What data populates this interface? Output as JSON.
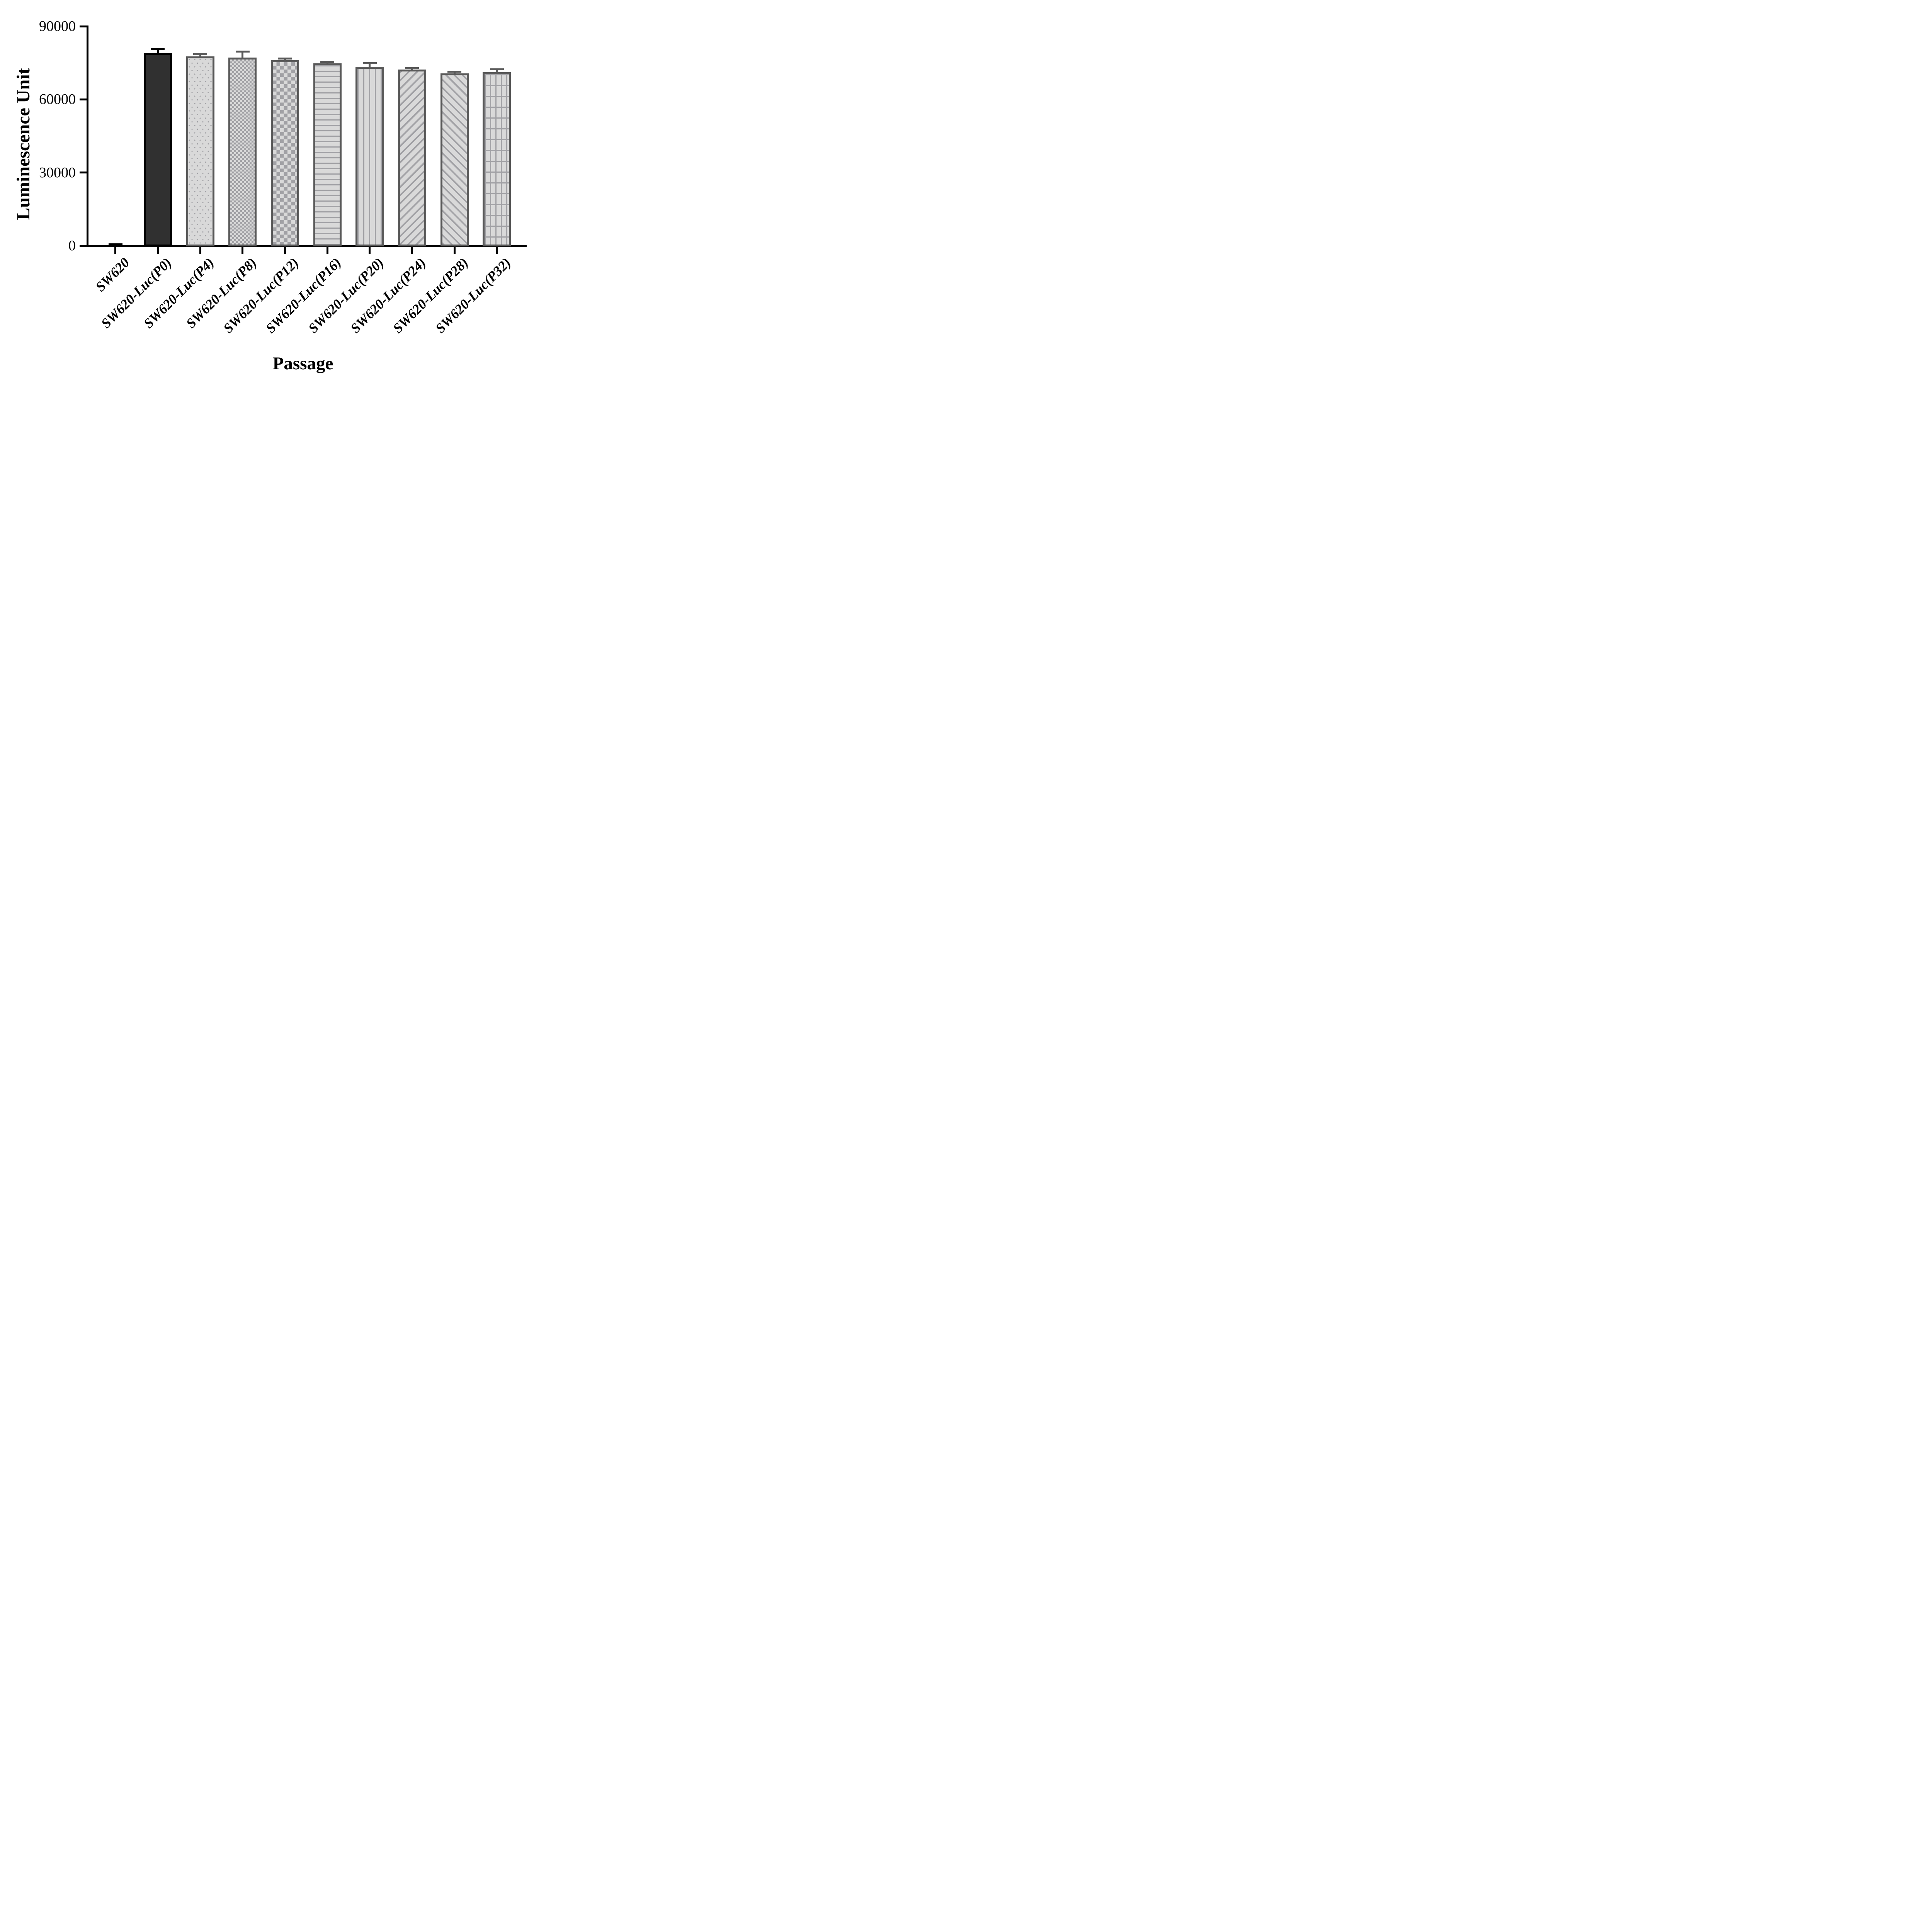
{
  "chart_data": {
    "type": "bar",
    "title": "",
    "xlabel": "Passage",
    "ylabel": "Luminescence Unit",
    "ylim": [
      0,
      90000
    ],
    "yticks": [
      0,
      30000,
      60000,
      90000
    ],
    "ytick_labels": [
      "0",
      "30000",
      "60000",
      "90000"
    ],
    "grid": false,
    "legend": null,
    "categories": [
      "SW620",
      "SW620-Luc(P0)",
      "SW620-Luc(P4)",
      "SW620-Luc(P8)",
      "SW620-Luc(P12)",
      "SW620-Luc(P16)",
      "SW620-Luc(P20)",
      "SW620-Luc(P24)",
      "SW620-Luc(P28)",
      "SW620-Luc(P32)"
    ],
    "series": [
      {
        "name": "Luminescence Unit",
        "values": [
          300,
          79100,
          77700,
          77200,
          76000,
          74800,
          73400,
          72200,
          70600,
          71200
        ],
        "errors_plus": [
          300,
          1700,
          800,
          2400,
          800,
          600,
          1500,
          600,
          800,
          1100
        ]
      }
    ],
    "bar_patterns": [
      "solid-dark",
      "solid-dark",
      "dots",
      "checker-fine",
      "checker",
      "horizontal-lines",
      "vertical-lines",
      "diagonal-up",
      "diagonal-down",
      "grid"
    ],
    "colors": {
      "background": "#ffffff",
      "axis": "#000000",
      "solid_bar_fill": "#303030",
      "solid_bar_border": "#000000",
      "pattern_bar_border": "#595959",
      "pattern_line": "#a1a1a5",
      "pattern_light_fill": "#d9d9d9",
      "error_bar_dark": "#000000",
      "error_bar_gray": "#595959"
    }
  }
}
